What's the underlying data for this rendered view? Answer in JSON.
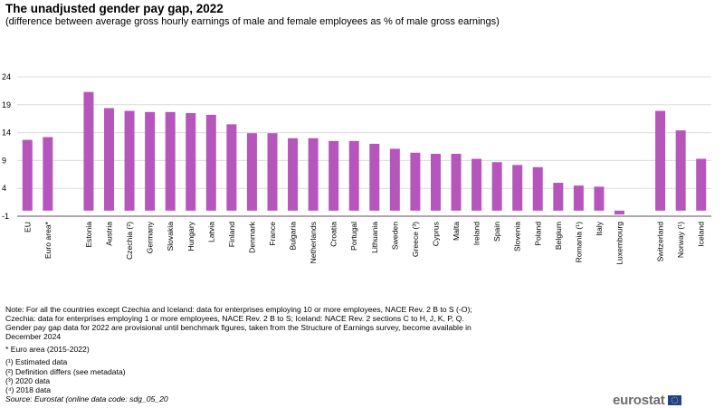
{
  "header": {
    "title": "The unadjusted gender pay gap, 2022",
    "subtitle": "(difference between average gross hourly earnings of male and female employees as % of male gross earnings)"
  },
  "colors": {
    "bar": "#b656bd",
    "grid": "#dcdcdc",
    "axis": "#555555"
  },
  "chart_data": {
    "type": "bar",
    "title": "The unadjusted gender pay gap, 2022",
    "xlabel": "",
    "ylabel": "",
    "ylim": [
      -1,
      24
    ],
    "yticks": [
      -1,
      4,
      9,
      14,
      19,
      24
    ],
    "grid": true,
    "legend": "none",
    "categories": [
      "EU",
      "Euro area*",
      "Estonia",
      "Austria",
      "Czechia (²)",
      "Germany",
      "Slovakia",
      "Hungary",
      "Latvia",
      "Finland",
      "Denmark",
      "France",
      "Bulgaria",
      "Netherlands",
      "Croatia",
      "Portugal",
      "Lithuania",
      "Sweden",
      "Greece (³)",
      "Cyprus",
      "Malta",
      "Ireland",
      "Spain",
      "Slovenia",
      "Poland",
      "Belgium",
      "Romania (¹)",
      "Italy",
      "Luxembourg",
      "Switzerland",
      "Norway (¹)",
      "Iceland"
    ],
    "groups": [
      2,
      27,
      3
    ],
    "values": [
      12.7,
      13.2,
      21.3,
      18.4,
      17.9,
      17.7,
      17.7,
      17.5,
      17.2,
      15.5,
      13.9,
      13.9,
      13.0,
      13.0,
      12.5,
      12.5,
      12.0,
      11.1,
      10.4,
      10.2,
      10.2,
      9.3,
      8.7,
      8.2,
      7.8,
      5.0,
      4.5,
      4.3,
      -0.7,
      17.9,
      14.4,
      9.3
    ]
  },
  "notes": {
    "lines": [
      "Note: For all the countries except Czechia and Iceland: data for enterprises employing 10 or more employees, NACE Rev. 2 B to S (-O);",
      "Czechia: data for enterprises employing 1 or more employees, NACE Rev. 2 B to S; Iceland: NACE Rev. 2 sections C to H, J, K, P, Q.",
      "Gender pay gap data for 2022 are provisional until benchmark figures, taken from the Structure of Earnings survey, become available in",
      "December 2024"
    ],
    "euro_area": "* Euro area (2015-2022)",
    "footnotes": [
      "(¹) Estimated data",
      "(²) Definition differs (see metadata)",
      "(³) 2020 data",
      "(⁴) 2018 data"
    ],
    "source": "Source: Eurostat (online data code: sdg_05_20"
  },
  "logo": {
    "text": "eurostat",
    "icon": "eu-flag-icon"
  }
}
